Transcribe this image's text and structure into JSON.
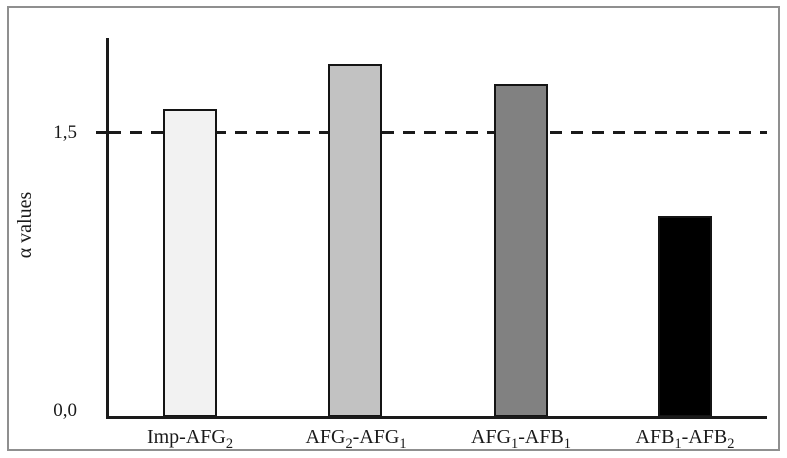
{
  "chart_data": {
    "type": "bar",
    "title": "",
    "xlabel": "",
    "ylabel": "α values",
    "categories": [
      "Imp-AFG₂",
      "AFG₂-AFG₁",
      "AFG₁-AFB₁",
      "AFB₁-AFB₂"
    ],
    "values": [
      1.62,
      1.86,
      1.75,
      1.06
    ],
    "bar_colors": [
      "#f2f2f2",
      "#c2c2c2",
      "#818181",
      "#000000"
    ],
    "bar_border_color": "#141414",
    "ylim": [
      0,
      2.0
    ],
    "yticks": [
      0.0,
      1.5
    ],
    "ytick_labels": [
      "0,0",
      "1,5"
    ],
    "reference_line": {
      "y": 1.5,
      "style": "dashed",
      "color": "#1a1a1a"
    },
    "grid": false,
    "legend": false,
    "frame_color": "#8f8f8f",
    "axis_color": "#1a1a1a"
  }
}
